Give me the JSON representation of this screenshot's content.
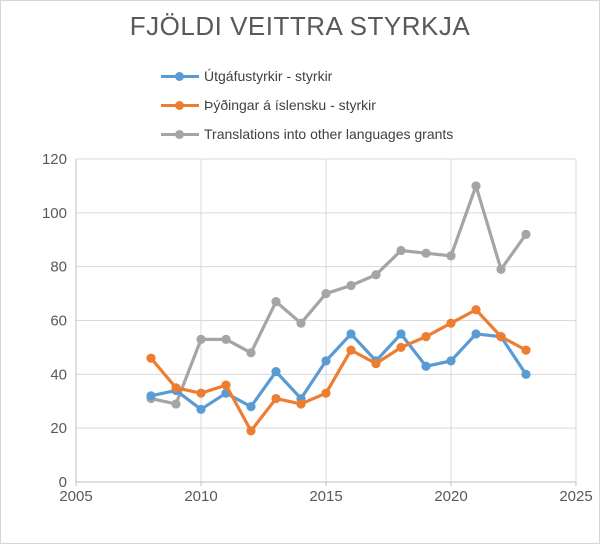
{
  "chart_data": {
    "type": "line",
    "title": "FJÖLDI VEITTRA STYRKJA",
    "x": [
      2008,
      2009,
      2010,
      2011,
      2012,
      2013,
      2014,
      2015,
      2016,
      2017,
      2018,
      2019,
      2020,
      2021,
      2022,
      2023
    ],
    "series": [
      {
        "name": "Útgáfustyrkir - styrkir",
        "color": "#5B9BD5",
        "values": [
          32,
          34,
          27,
          33,
          28,
          41,
          31,
          45,
          55,
          45,
          55,
          43,
          45,
          55,
          54,
          40
        ]
      },
      {
        "name": "Þýðingar á íslensku - styrkir",
        "color": "#ED7D31",
        "values": [
          46,
          35,
          33,
          36,
          19,
          31,
          29,
          33,
          49,
          44,
          50,
          54,
          59,
          64,
          54,
          49
        ]
      },
      {
        "name": "Translations into other languages grants",
        "color": "#A5A5A5",
        "values": [
          31,
          29,
          53,
          53,
          48,
          67,
          59,
          70,
          73,
          77,
          86,
          85,
          84,
          110,
          79,
          92
        ]
      }
    ],
    "xlim": [
      2005,
      2025
    ],
    "ylim": [
      0,
      120
    ],
    "x_ticks": [
      2005,
      2010,
      2015,
      2020,
      2025
    ],
    "y_ticks": [
      0,
      20,
      40,
      60,
      80,
      100,
      120
    ],
    "grid": true,
    "legend_position": "top-center",
    "marker": "circle"
  },
  "style": {
    "gridline_color": "#D9D9D9",
    "axis_color": "#BFBFBF",
    "tick_label_color": "#595959",
    "title_color": "#595959",
    "background": "#FFFFFF"
  }
}
